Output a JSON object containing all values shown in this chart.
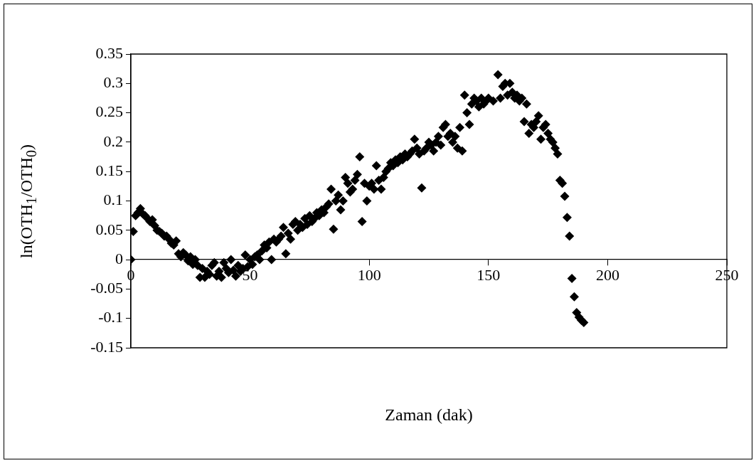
{
  "chart_data": {
    "type": "scatter",
    "xlabel": "Zaman (dak)",
    "ylabel": "ln(OTH$_{1}$/OTH$_{0}$)",
    "marker": "diamond",
    "grid": false,
    "legend": false,
    "xlim": [
      0,
      250
    ],
    "xticks": [
      0,
      50,
      100,
      150,
      200,
      250
    ],
    "ylim": [
      -0.15,
      0.35
    ],
    "yticks": [
      -0.15,
      -0.1,
      -0.05,
      0,
      0.05,
      0.1,
      0.15,
      0.2,
      0.25,
      0.3,
      0.35
    ],
    "series": [
      {
        "color": "#000000",
        "x": [
          0,
          1,
          2,
          3,
          4,
          5,
          6,
          7,
          8,
          9,
          10,
          11,
          12,
          13,
          14,
          15,
          16,
          17,
          18,
          19,
          20,
          21,
          22,
          23,
          24,
          25,
          26,
          27,
          28,
          29,
          30,
          31,
          32,
          33,
          34,
          35,
          36,
          37,
          38,
          39,
          40,
          41,
          42,
          43,
          44,
          45,
          46,
          47,
          48,
          49,
          50,
          51,
          52,
          53,
          54,
          55,
          56,
          57,
          58,
          59,
          60,
          61,
          62,
          63,
          64,
          65,
          66,
          67,
          68,
          69,
          70,
          71,
          72,
          73,
          74,
          75,
          76,
          77,
          78,
          79,
          80,
          81,
          82,
          83,
          84,
          85,
          86,
          87,
          88,
          89,
          90,
          91,
          92,
          93,
          94,
          95,
          96,
          97,
          98,
          99,
          100,
          101,
          102,
          103,
          104,
          105,
          106,
          107,
          108,
          109,
          110,
          111,
          112,
          113,
          114,
          115,
          116,
          117,
          118,
          119,
          120,
          121,
          122,
          123,
          124,
          125,
          126,
          127,
          128,
          129,
          130,
          131,
          132,
          133,
          134,
          135,
          136,
          137,
          138,
          139,
          140,
          141,
          142,
          143,
          144,
          145,
          146,
          147,
          148,
          149,
          150,
          152,
          154,
          155,
          156,
          157,
          158,
          159,
          160,
          161,
          162,
          163,
          164,
          165,
          166,
          167,
          168,
          169,
          170,
          171,
          172,
          173,
          174,
          175,
          176,
          177,
          178,
          179,
          180,
          181,
          182,
          183,
          184,
          185,
          186,
          187,
          188,
          189,
          190
        ],
        "values": [
          0,
          0.048,
          0.075,
          0.08,
          0.087,
          0.078,
          0.075,
          0.07,
          0.065,
          0.068,
          0.058,
          0.05,
          0.048,
          0.045,
          0.04,
          0.04,
          0.035,
          0.028,
          0.025,
          0.032,
          0.01,
          0.005,
          0.012,
          0.008,
          -0.002,
          0.005,
          -0.008,
          0,
          -0.01,
          -0.03,
          -0.015,
          -0.03,
          -0.02,
          -0.025,
          -0.01,
          -0.005,
          -0.028,
          -0.02,
          -0.03,
          -0.005,
          -0.015,
          -0.022,
          0,
          -0.018,
          -0.028,
          -0.01,
          -0.02,
          -0.015,
          0.008,
          -0.012,
          0,
          -0.008,
          0.005,
          0.008,
          0,
          0.015,
          0.025,
          0.02,
          0.03,
          0,
          0.035,
          0.03,
          0.035,
          0.04,
          0.055,
          0.01,
          0.045,
          0.035,
          0.06,
          0.065,
          0.05,
          0.06,
          0.055,
          0.07,
          0.06,
          0.075,
          0.065,
          0.07,
          0.08,
          0.075,
          0.085,
          0.08,
          0.09,
          0.095,
          0.12,
          0.052,
          0.1,
          0.11,
          0.085,
          0.1,
          0.14,
          0.13,
          0.115,
          0.12,
          0.135,
          0.145,
          0.175,
          0.065,
          0.13,
          0.1,
          0.125,
          0.13,
          0.12,
          0.16,
          0.135,
          0.12,
          0.14,
          0.15,
          0.155,
          0.165,
          0.16,
          0.17,
          0.165,
          0.175,
          0.17,
          0.18,
          0.175,
          0.18,
          0.185,
          0.205,
          0.19,
          0.18,
          0.122,
          0.185,
          0.19,
          0.2,
          0.195,
          0.185,
          0.2,
          0.21,
          0.195,
          0.225,
          0.23,
          0.21,
          0.215,
          0.2,
          0.21,
          0.19,
          0.225,
          0.185,
          0.28,
          0.25,
          0.23,
          0.265,
          0.275,
          0.27,
          0.26,
          0.275,
          0.265,
          0.27,
          0.275,
          0.27,
          0.315,
          0.275,
          0.295,
          0.3,
          0.28,
          0.3,
          0.285,
          0.275,
          0.28,
          0.27,
          0.275,
          0.235,
          0.265,
          0.215,
          0.23,
          0.225,
          0.235,
          0.245,
          0.205,
          0.225,
          0.23,
          0.215,
          0.205,
          0.2,
          0.19,
          0.18,
          0.135,
          0.13,
          0.108,
          0.072,
          0.04,
          -0.032,
          -0.063,
          -0.09,
          -0.098,
          -0.103,
          -0.107
        ]
      }
    ]
  }
}
